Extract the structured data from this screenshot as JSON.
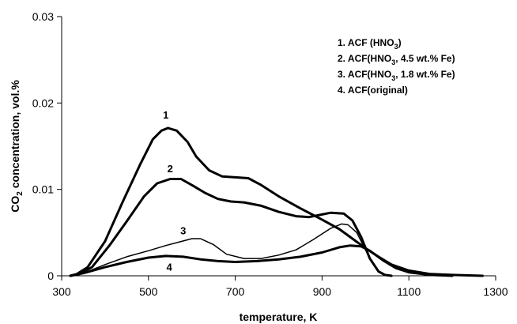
{
  "chart_data": {
    "type": "line",
    "xlabel": "temperature, K",
    "ylabel": {
      "pre": "CO",
      "sub": "2",
      "post": " concentration, vol.%"
    },
    "xlim": [
      300,
      1300
    ],
    "ylim": [
      0,
      0.03
    ],
    "x_ticks": [
      300,
      500,
      700,
      900,
      1100,
      1300
    ],
    "x_tick_labels": [
      "300",
      "500",
      "700",
      "900",
      "1100",
      "1300"
    ],
    "y_ticks": [
      0,
      0.01,
      0.02,
      0.03
    ],
    "y_tick_labels": [
      "0",
      "0.01",
      "0.02",
      "0.03"
    ],
    "grid": false,
    "legend_position": "top-right",
    "legend": [
      {
        "pre": "1. ACF (HNO",
        "sub": "3",
        "post": ")"
      },
      {
        "pre": "2. ACF(HNO",
        "sub": "3",
        "post": ", 4.5 wt.% Fe)"
      },
      {
        "pre": "3. ACF(HNO",
        "sub": "3",
        "post": ", 1.8 wt.% Fe)"
      },
      {
        "pre": "4. ACF(original)",
        "sub": "",
        "post": ""
      }
    ],
    "series": [
      {
        "label": "1",
        "label_at": [
          540,
          0.0182
        ],
        "stroke_width": 3,
        "points": [
          [
            320,
            0
          ],
          [
            335,
            0.0002
          ],
          [
            360,
            0.001
          ],
          [
            400,
            0.004
          ],
          [
            440,
            0.0085
          ],
          [
            480,
            0.0128
          ],
          [
            510,
            0.0158
          ],
          [
            530,
            0.0168
          ],
          [
            545,
            0.0171
          ],
          [
            565,
            0.0168
          ],
          [
            590,
            0.0155
          ],
          [
            610,
            0.0138
          ],
          [
            640,
            0.0122
          ],
          [
            670,
            0.0115
          ],
          [
            700,
            0.0114
          ],
          [
            730,
            0.0113
          ],
          [
            760,
            0.0105
          ],
          [
            800,
            0.0092
          ],
          [
            850,
            0.0078
          ],
          [
            900,
            0.0065
          ],
          [
            940,
            0.0054
          ],
          [
            970,
            0.0043
          ],
          [
            1000,
            0.0032
          ],
          [
            1030,
            0.0022
          ],
          [
            1060,
            0.0013
          ],
          [
            1100,
            0.0006
          ],
          [
            1150,
            0.0002
          ],
          [
            1200,
            0.0001
          ],
          [
            1270,
            0
          ]
        ]
      },
      {
        "label": "2",
        "label_at": [
          550,
          0.012
        ],
        "stroke_width": 3,
        "points": [
          [
            320,
            0
          ],
          [
            340,
            0.0002
          ],
          [
            370,
            0.001
          ],
          [
            410,
            0.0035
          ],
          [
            450,
            0.0063
          ],
          [
            490,
            0.0092
          ],
          [
            520,
            0.0107
          ],
          [
            550,
            0.0112
          ],
          [
            575,
            0.0112
          ],
          [
            600,
            0.0105
          ],
          [
            630,
            0.0096
          ],
          [
            660,
            0.0089
          ],
          [
            690,
            0.0086
          ],
          [
            720,
            0.0085
          ],
          [
            760,
            0.0081
          ],
          [
            800,
            0.0074
          ],
          [
            840,
            0.0069
          ],
          [
            870,
            0.0068
          ],
          [
            900,
            0.0071
          ],
          [
            920,
            0.0073
          ],
          [
            950,
            0.0072
          ],
          [
            970,
            0.0064
          ],
          [
            990,
            0.0045
          ],
          [
            1010,
            0.002
          ],
          [
            1030,
            0.0005
          ],
          [
            1045,
            0.0001
          ],
          [
            1060,
            0
          ]
        ]
      },
      {
        "label": "3",
        "label_at": [
          580,
          0.0048
        ],
        "stroke_width": 1.5,
        "points": [
          [
            320,
            0
          ],
          [
            350,
            0.0003
          ],
          [
            400,
            0.0013
          ],
          [
            450,
            0.0022
          ],
          [
            500,
            0.0029
          ],
          [
            540,
            0.0035
          ],
          [
            570,
            0.0039
          ],
          [
            600,
            0.0043
          ],
          [
            620,
            0.0043
          ],
          [
            650,
            0.0036
          ],
          [
            680,
            0.0025
          ],
          [
            720,
            0.002
          ],
          [
            760,
            0.002
          ],
          [
            800,
            0.0024
          ],
          [
            840,
            0.003
          ],
          [
            880,
            0.0042
          ],
          [
            920,
            0.0055
          ],
          [
            945,
            0.006
          ],
          [
            960,
            0.0059
          ],
          [
            980,
            0.005
          ],
          [
            1000,
            0.003
          ],
          [
            1020,
            0.0012
          ],
          [
            1035,
            0.0003
          ],
          [
            1050,
            0
          ]
        ]
      },
      {
        "label": "4",
        "label_at": [
          548,
          0.0006
        ],
        "stroke_width": 3,
        "points": [
          [
            320,
            0
          ],
          [
            350,
            0.0003
          ],
          [
            400,
            0.001
          ],
          [
            450,
            0.0016
          ],
          [
            500,
            0.0021
          ],
          [
            540,
            0.0023
          ],
          [
            580,
            0.0022
          ],
          [
            620,
            0.0019
          ],
          [
            660,
            0.0017
          ],
          [
            700,
            0.0016
          ],
          [
            750,
            0.0017
          ],
          [
            800,
            0.0019
          ],
          [
            850,
            0.0022
          ],
          [
            900,
            0.0027
          ],
          [
            940,
            0.0033
          ],
          [
            965,
            0.0035
          ],
          [
            990,
            0.0034
          ],
          [
            1010,
            0.0029
          ],
          [
            1040,
            0.0018
          ],
          [
            1070,
            0.0009
          ],
          [
            1100,
            0.0004
          ],
          [
            1150,
            0.0001
          ],
          [
            1200,
            0
          ]
        ]
      }
    ]
  }
}
